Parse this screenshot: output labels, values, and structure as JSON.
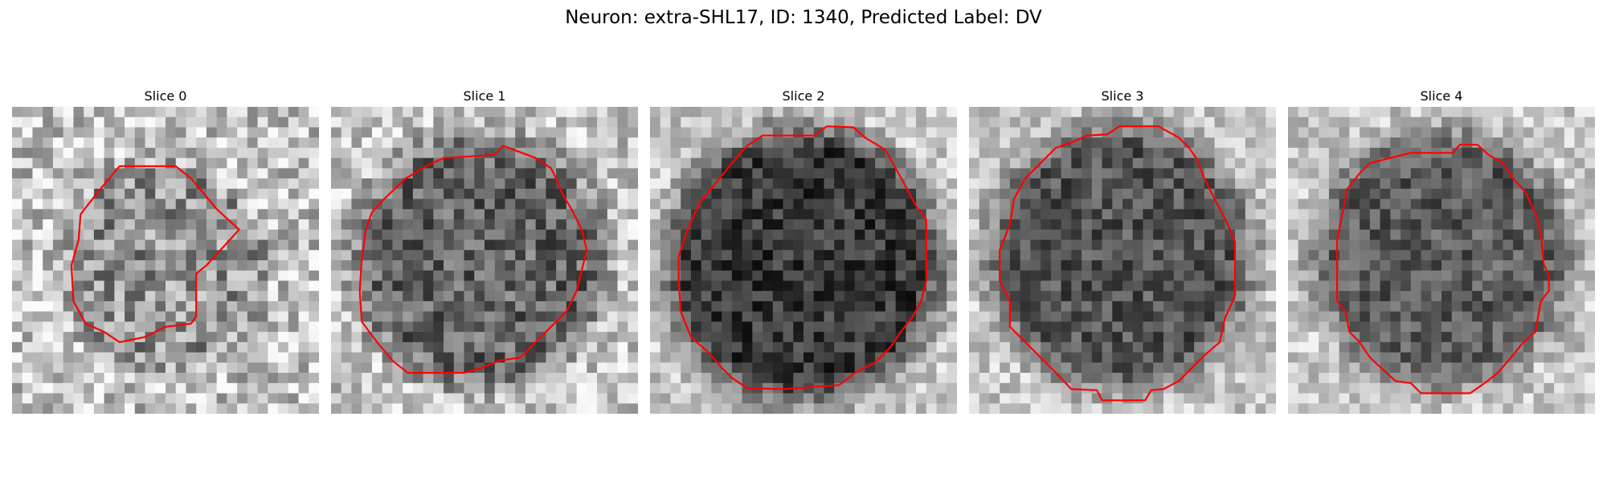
{
  "figure": {
    "title": "Neuron: extra-SHL17, ID: 1340, Predicted Label: DV",
    "contour_color": "#ff0000",
    "panels": [
      {
        "title": "Slice 0"
      },
      {
        "title": "Slice 1"
      },
      {
        "title": "Slice 2"
      },
      {
        "title": "Slice 3"
      },
      {
        "title": "Slice 4"
      }
    ]
  }
}
